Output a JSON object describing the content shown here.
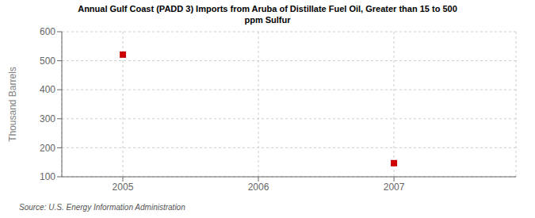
{
  "chart_data": {
    "type": "scatter",
    "title": "Annual Gulf Coast (PADD 3) Imports from Aruba of Distillate Fuel Oil, Greater than 15 to 500\nppm Sulfur",
    "ylabel": "Thousand Barrels",
    "annotations": [
      "Source: U.S. Energy Information Administration"
    ],
    "x": [
      2005,
      2007
    ],
    "values": [
      521,
      147
    ],
    "color": "#cc0000",
    "marker": "square",
    "xlim": [
      2004.55,
      2007.9
    ],
    "xticks": [
      2005,
      2006,
      2007
    ],
    "ylim": [
      100,
      600
    ],
    "yticks": [
      100,
      200,
      300,
      400,
      500,
      600
    ],
    "grid": true
  }
}
